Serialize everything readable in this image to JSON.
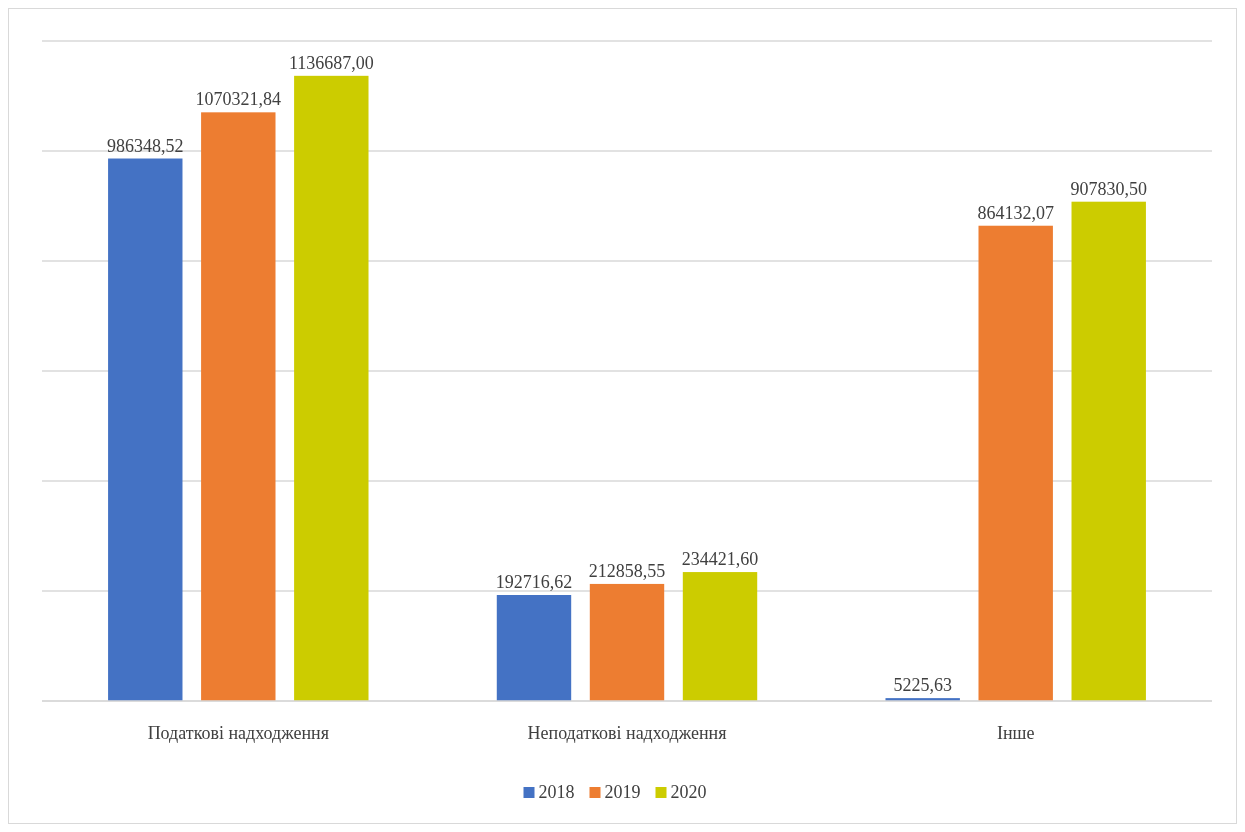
{
  "chart_data": {
    "type": "bar",
    "categories": [
      "Податкові надходження",
      "Неподаткові надходження",
      "Інше"
    ],
    "series": [
      {
        "name": "2018",
        "color": "#4472c4",
        "values": [
          986348.52,
          192716.62,
          5225.63
        ],
        "value_labels": [
          "986348,52",
          "192716,62",
          "5225,63"
        ]
      },
      {
        "name": "2019",
        "color": "#ed7d31",
        "values": [
          1070321.84,
          212858.55,
          864132.07
        ],
        "value_labels": [
          "1070321,84",
          "212858,55",
          "864132,07"
        ]
      },
      {
        "name": "2020",
        "color": "#cccc00",
        "values": [
          1136687.0,
          234421.6,
          907830.5
        ],
        "value_labels": [
          "1136687,00",
          "234421,60",
          "907830,50"
        ]
      }
    ],
    "ylim": [
      0,
      1200000
    ],
    "yticks": [
      {
        "value": 0,
        "label": null
      },
      {
        "value": 200000,
        "label": null
      },
      {
        "value": 400000,
        "label": null
      },
      {
        "value": 600000,
        "label": null
      },
      {
        "value": 800000,
        "label": null
      },
      {
        "value": 1000000,
        "label": null
      },
      {
        "value": 1200000,
        "label": null
      }
    ],
    "grid": "y",
    "legend": "bottom",
    "tick_labels": "x"
  }
}
